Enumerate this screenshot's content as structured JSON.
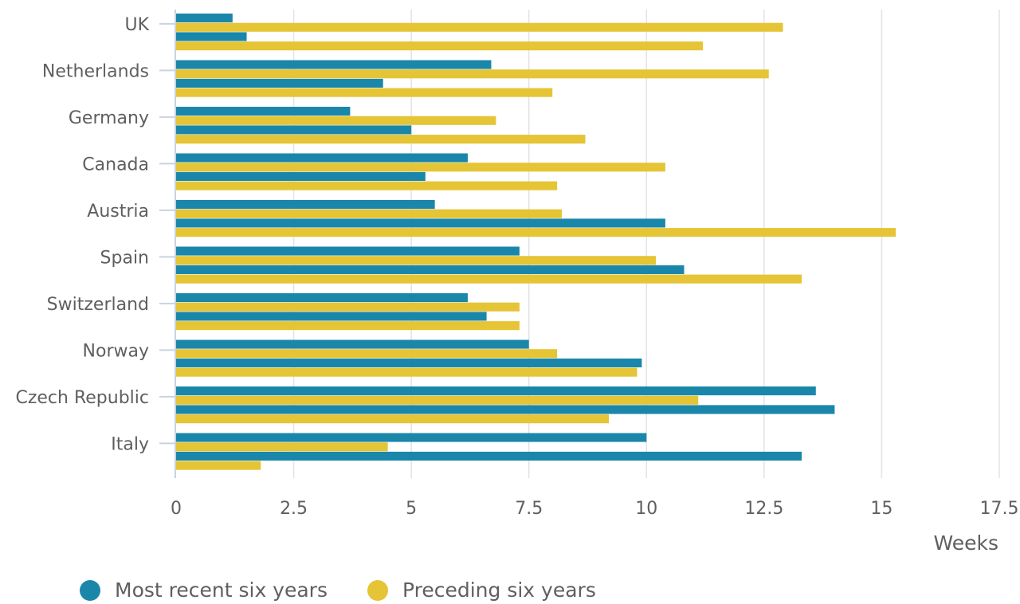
{
  "chart_data": {
    "type": "bar",
    "orientation": "horizontal",
    "xlabel": "Weeks",
    "xlim": [
      0,
      17.5
    ],
    "xticks": [
      "0",
      "2.5",
      "5",
      "7.5",
      "10",
      "12.5",
      "15",
      "17.5"
    ],
    "grid": true,
    "legend_position": "bottom-left",
    "colors": {
      "recent": "#1a87aa",
      "preceding": "#e5c435"
    },
    "categories": [
      "UK",
      "Netherlands",
      "Germany",
      "Canada",
      "Austria",
      "Spain",
      "Switzerland",
      "Norway",
      "Czech Republic",
      "Italy"
    ],
    "series": [
      {
        "name": "Most recent six years",
        "key": "recent",
        "values": [
          1.2,
          6.7,
          3.7,
          6.2,
          5.5,
          7.3,
          6.2,
          7.5,
          13.6,
          10.0
        ]
      },
      {
        "name": "Preceding six years",
        "key": "preceding",
        "values": [
          12.9,
          12.6,
          6.8,
          10.4,
          8.2,
          10.2,
          7.3,
          8.1,
          11.1,
          4.5
        ]
      },
      {
        "name": "",
        "key": "recent",
        "values": [
          1.5,
          4.4,
          5.0,
          5.3,
          10.4,
          10.8,
          6.6,
          9.9,
          14.0,
          13.3
        ]
      },
      {
        "name": "",
        "key": "preceding",
        "values": [
          11.2,
          8.0,
          8.7,
          8.1,
          15.3,
          13.3,
          7.3,
          9.8,
          9.2,
          1.8
        ]
      }
    ]
  },
  "legend": {
    "recent_label": "Most recent six years",
    "preceding_label": "Preceding six years"
  }
}
